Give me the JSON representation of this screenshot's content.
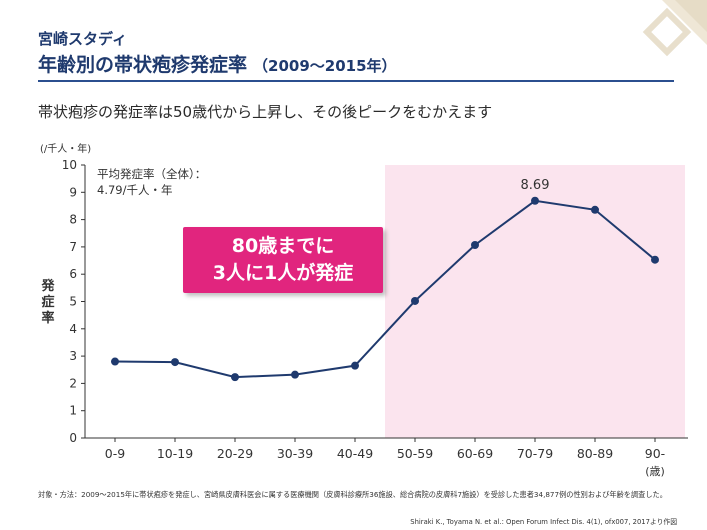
{
  "header": {
    "study_name": "宮崎スタディ",
    "title": "年齢別の帯状疱疹発症率",
    "period": "（2009～2015年）"
  },
  "subtitle": "帯状疱疹の発症率は50歳代から上昇し、その後ピークをむかえます",
  "callout": {
    "line1": "80歳までに",
    "line2": "3人に1人が発症"
  },
  "overall_note": {
    "line1": "平均発症率（全体）：",
    "line2": "4.79/千人・年"
  },
  "colors": {
    "line": "#1f3a6e",
    "highlight": "#fbe4ee",
    "callout": "#e1257e",
    "title": "#1f3a6e"
  },
  "chart_data": {
    "type": "line",
    "categories": [
      "0-9",
      "10-19",
      "20-29",
      "30-39",
      "40-49",
      "50-59",
      "60-69",
      "70-79",
      "80-89",
      "90-"
    ],
    "values": [
      2.8,
      2.78,
      2.23,
      2.32,
      2.65,
      5.02,
      7.07,
      8.69,
      8.36,
      6.53
    ],
    "ylabel": "発症率",
    "yunit": "(/千人・年)",
    "xunit": "(歳)",
    "ylim": [
      0,
      10
    ],
    "yticks": [
      0,
      1,
      2,
      3,
      4,
      5,
      6,
      7,
      8,
      9,
      10
    ],
    "highlight_range": [
      "50-59",
      "90-"
    ],
    "data_labels": [
      {
        "category": "70-79",
        "text": "8.69"
      }
    ],
    "grid": false,
    "legend": "none"
  },
  "footnote": "対象・方法：2009～2015年に帯状疱疹を発症し、宮崎県皮膚科医会に属する医療機関（皮膚科診療所36施設、総合病院の皮膚科7施設）を受診した患者34,877例の性別および年齢を調査した。",
  "citation": "Shiraki K., Toyama N. et al.: Open Forum Infect Dis. 4(1), ofx007, 2017より作図"
}
